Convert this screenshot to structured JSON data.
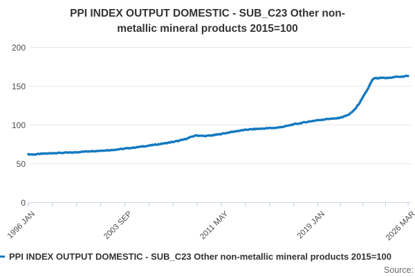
{
  "title": {
    "full": "PPI INDEX OUTPUT DOMESTIC - SUB_C23 Other non-metallic mineral products 2015=100",
    "line1": "PPI INDEX OUTPUT DOMESTIC - SUB_C23 Other non-",
    "line2": "metallic mineral products 2015=100"
  },
  "legend": {
    "label": "PPI INDEX OUTPUT DOMESTIC - SUB_C23 Other non-metallic mineral products 2015=100"
  },
  "source": {
    "label": "Source:"
  },
  "colors": {
    "series": "#1379c0",
    "grid": "#e7e7e7",
    "axis_baseline": "#cdd8e8",
    "tick": "#b9c7dd",
    "title_text": "#333333",
    "axis_text": "#4c4c4c",
    "source_text": "#6b6b6b"
  },
  "chart_data": {
    "type": "line",
    "title": "PPI INDEX OUTPUT DOMESTIC - SUB_C23 Other non-metallic mineral products 2015=100",
    "xlabel": "",
    "ylabel": "",
    "ylim": [
      0,
      200
    ],
    "grid": true,
    "legend_position": "bottom-left",
    "y_axis": {
      "ticks": [
        0,
        50,
        100,
        150,
        200
      ]
    },
    "x_axis": {
      "start": "1996 JAN",
      "end": "2026 MAR",
      "tick_labels": [
        "1996 JAN",
        "2003 SEP",
        "2011 MAY",
        "2019 JAN",
        "2026 MAR"
      ],
      "minor_ticks_per_interval": 4
    },
    "series": [
      {
        "name": "PPI INDEX OUTPUT DOMESTIC - SUB_C23 Other non-metallic mineral products 2015=100",
        "frequency": "monthly",
        "points": [
          {
            "m": "1996 JAN",
            "v": 62.2
          },
          {
            "m": "1996 JUL",
            "v": 62.0
          },
          {
            "m": "1997 JAN",
            "v": 62.8
          },
          {
            "m": "1997 JUL",
            "v": 63.2
          },
          {
            "m": "1998 JAN",
            "v": 63.8
          },
          {
            "m": "1998 JUL",
            "v": 64.0
          },
          {
            "m": "1999 JAN",
            "v": 64.3
          },
          {
            "m": "1999 JUL",
            "v": 64.4
          },
          {
            "m": "2000 JAN",
            "v": 65.2
          },
          {
            "m": "2000 JUL",
            "v": 65.8
          },
          {
            "m": "2001 JAN",
            "v": 66.3
          },
          {
            "m": "2001 JUL",
            "v": 66.6
          },
          {
            "m": "2002 JAN",
            "v": 67.2
          },
          {
            "m": "2002 JUL",
            "v": 67.6
          },
          {
            "m": "2003 JAN",
            "v": 68.4
          },
          {
            "m": "2003 JUL",
            "v": 69.2
          },
          {
            "m": "2004 JAN",
            "v": 70.2
          },
          {
            "m": "2004 JUL",
            "v": 71.0
          },
          {
            "m": "2005 JAN",
            "v": 72.2
          },
          {
            "m": "2005 JUL",
            "v": 73.2
          },
          {
            "m": "2006 JAN",
            "v": 74.4
          },
          {
            "m": "2006 JUL",
            "v": 75.6
          },
          {
            "m": "2007 JAN",
            "v": 76.8
          },
          {
            "m": "2007 JUL",
            "v": 78.2
          },
          {
            "m": "2008 JAN",
            "v": 79.8
          },
          {
            "m": "2008 JUL",
            "v": 82.0
          },
          {
            "m": "2009 JAN",
            "v": 85.0
          },
          {
            "m": "2009 MAY",
            "v": 86.6
          },
          {
            "m": "2009 SEP",
            "v": 86.2
          },
          {
            "m": "2010 JAN",
            "v": 85.8
          },
          {
            "m": "2010 JUL",
            "v": 86.4
          },
          {
            "m": "2011 JAN",
            "v": 87.6
          },
          {
            "m": "2011 JUL",
            "v": 89.0
          },
          {
            "m": "2012 JAN",
            "v": 90.6
          },
          {
            "m": "2012 JUL",
            "v": 92.0
          },
          {
            "m": "2013 JAN",
            "v": 93.2
          },
          {
            "m": "2013 JUL",
            "v": 94.2
          },
          {
            "m": "2014 JAN",
            "v": 94.8
          },
          {
            "m": "2014 JUL",
            "v": 95.2
          },
          {
            "m": "2015 JAN",
            "v": 95.8
          },
          {
            "m": "2015 JUL",
            "v": 96.2
          },
          {
            "m": "2016 JAN",
            "v": 97.0
          },
          {
            "m": "2016 JUL",
            "v": 98.6
          },
          {
            "m": "2017 JAN",
            "v": 100.6
          },
          {
            "m": "2017 JUL",
            "v": 102.0
          },
          {
            "m": "2018 JAN",
            "v": 103.6
          },
          {
            "m": "2018 JUL",
            "v": 105.0
          },
          {
            "m": "2019 JAN",
            "v": 106.2
          },
          {
            "m": "2019 JUL",
            "v": 107.2
          },
          {
            "m": "2020 JAN",
            "v": 108.2
          },
          {
            "m": "2020 APR",
            "v": 108.0
          },
          {
            "m": "2020 JUL",
            "v": 108.6
          },
          {
            "m": "2020 OCT",
            "v": 109.4
          },
          {
            "m": "2021 JAN",
            "v": 110.6
          },
          {
            "m": "2021 APR",
            "v": 112.0
          },
          {
            "m": "2021 JUL",
            "v": 114.0
          },
          {
            "m": "2021 OCT",
            "v": 117.0
          },
          {
            "m": "2022 JAN",
            "v": 121.5
          },
          {
            "m": "2022 APR",
            "v": 127.0
          },
          {
            "m": "2022 JUL",
            "v": 133.5
          },
          {
            "m": "2022 OCT",
            "v": 140.5
          },
          {
            "m": "2023 JAN",
            "v": 147.5
          },
          {
            "m": "2023 MAR",
            "v": 153.0
          },
          {
            "m": "2023 MAY",
            "v": 158.0
          },
          {
            "m": "2023 JUL",
            "v": 160.5
          },
          {
            "m": "2023 OCT",
            "v": 160.0
          },
          {
            "m": "2024 JAN",
            "v": 160.8
          },
          {
            "m": "2024 MAY",
            "v": 160.4
          },
          {
            "m": "2024 SEP",
            "v": 160.8
          },
          {
            "m": "2025 JAN",
            "v": 161.6
          },
          {
            "m": "2025 MAY",
            "v": 162.4
          },
          {
            "m": "2025 AUG",
            "v": 161.8
          },
          {
            "m": "2025 NOV",
            "v": 162.8
          },
          {
            "m": "2026 MAR",
            "v": 163.5
          }
        ]
      }
    ]
  }
}
